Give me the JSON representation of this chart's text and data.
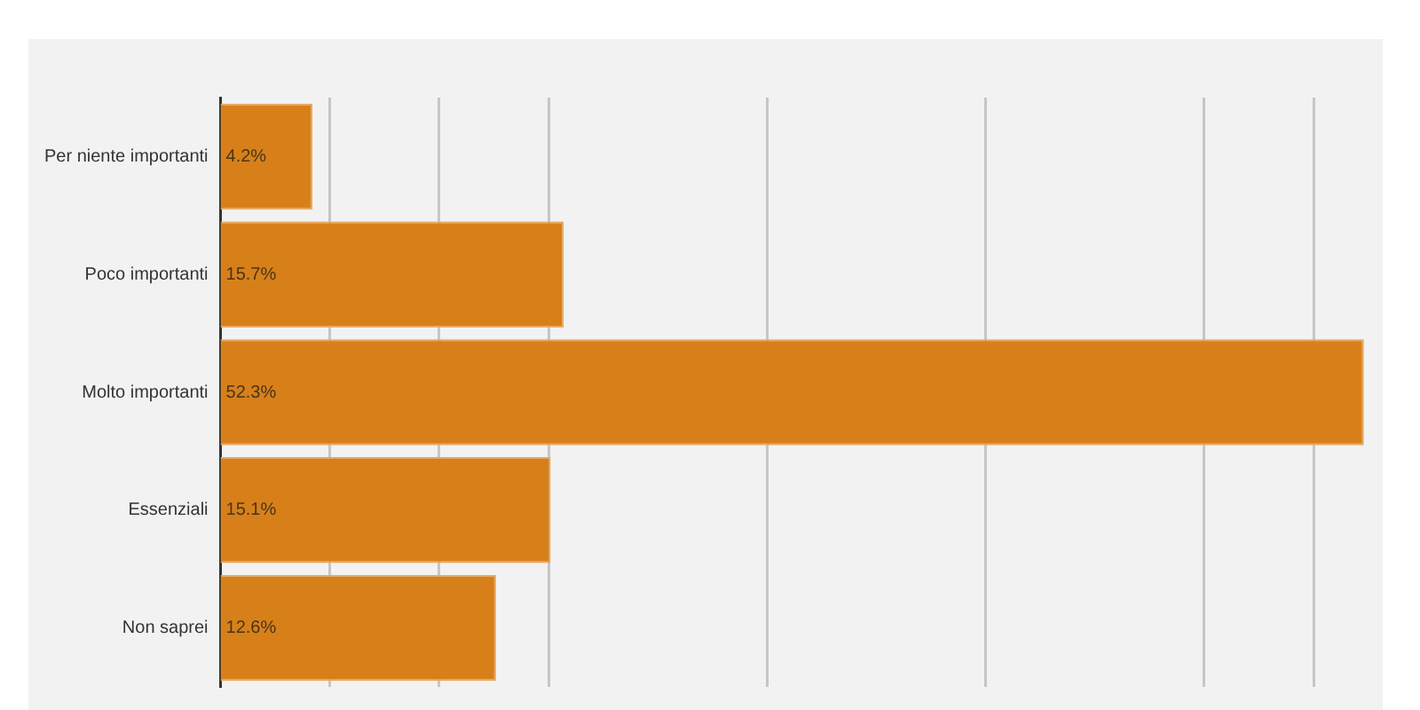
{
  "chart_data": {
    "type": "bar",
    "orientation": "horizontal",
    "categories": [
      "Per niente importanti",
      "Poco importanti",
      "Molto importanti",
      "Essenziali",
      "Non saprei"
    ],
    "values": [
      4.2,
      15.7,
      52.3,
      15.1,
      12.6
    ],
    "value_labels": [
      "4.2%",
      "15.7%",
      "52.3%",
      "15.1%",
      "12.6%"
    ],
    "color": "#d7801a",
    "xlim": [
      0,
      53
    ],
    "xticks": [
      {
        "value": 5,
        "label": null
      },
      {
        "value": 10,
        "label": null
      },
      {
        "value": 15,
        "label": null
      },
      {
        "value": 25,
        "label": null
      },
      {
        "value": 35,
        "label": null
      },
      {
        "value": 45,
        "label": null
      },
      {
        "value": 50,
        "label": null
      }
    ],
    "grid": "x",
    "tick_labels": "y",
    "legend": false
  }
}
